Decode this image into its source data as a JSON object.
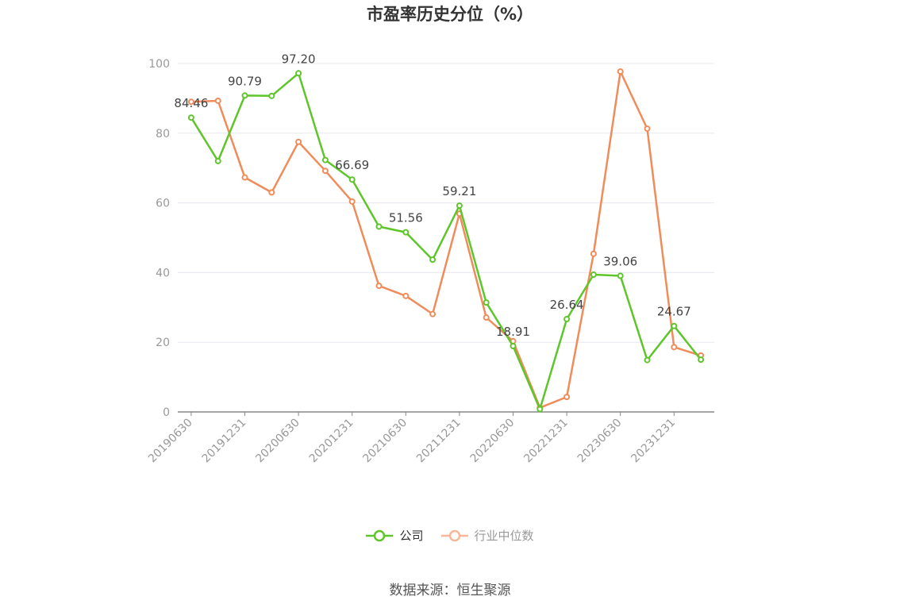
{
  "chart_data": {
    "type": "line",
    "title": "市盈率历史分位（%）",
    "x": [
      "20190630",
      "20190930",
      "20191231",
      "20200331",
      "20200630",
      "20200930",
      "20201231",
      "20210331",
      "20210630",
      "20210930",
      "20211231",
      "20220331",
      "20220630",
      "20220930",
      "20221231",
      "20230331",
      "20230630",
      "20230930",
      "20231231",
      "20240331"
    ],
    "x_tick_labels": [
      "20190630",
      "20191231",
      "20200630",
      "20201231",
      "20210630",
      "20211231",
      "20220630",
      "20221231",
      "20230630",
      "20231231"
    ],
    "ylim": [
      0,
      100
    ],
    "y_ticks": [
      0,
      20,
      40,
      60,
      80,
      100
    ],
    "grid": true,
    "legend_position": "bottom-center",
    "series": [
      {
        "name": "公司",
        "color": "#5ec52a",
        "values": [
          84.46,
          72.0,
          90.79,
          90.7,
          97.2,
          72.3,
          66.69,
          53.2,
          51.56,
          43.7,
          59.21,
          31.4,
          18.91,
          0.8,
          26.64,
          39.4,
          39.06,
          14.9,
          24.67,
          15.0
        ],
        "labels": [
          {
            "index": 0,
            "text": "84.46"
          },
          {
            "index": 2,
            "text": "90.79"
          },
          {
            "index": 4,
            "text": "97.20"
          },
          {
            "index": 6,
            "text": "66.69"
          },
          {
            "index": 8,
            "text": "51.56"
          },
          {
            "index": 10,
            "text": "59.21"
          },
          {
            "index": 12,
            "text": "18.91"
          },
          {
            "index": 14,
            "text": "26.64"
          },
          {
            "index": 16,
            "text": "39.06"
          },
          {
            "index": 18,
            "text": "24.67"
          }
        ]
      },
      {
        "name": "行业中位数",
        "color": "#f08b5a",
        "values": [
          89.0,
          89.3,
          67.3,
          63.0,
          77.5,
          69.2,
          60.4,
          36.2,
          33.3,
          28.1,
          56.9,
          27.1,
          20.3,
          1.2,
          4.3,
          45.4,
          97.7,
          81.3,
          18.6,
          16.2
        ],
        "labels": []
      }
    ],
    "source": "数据来源：恒生聚源"
  }
}
